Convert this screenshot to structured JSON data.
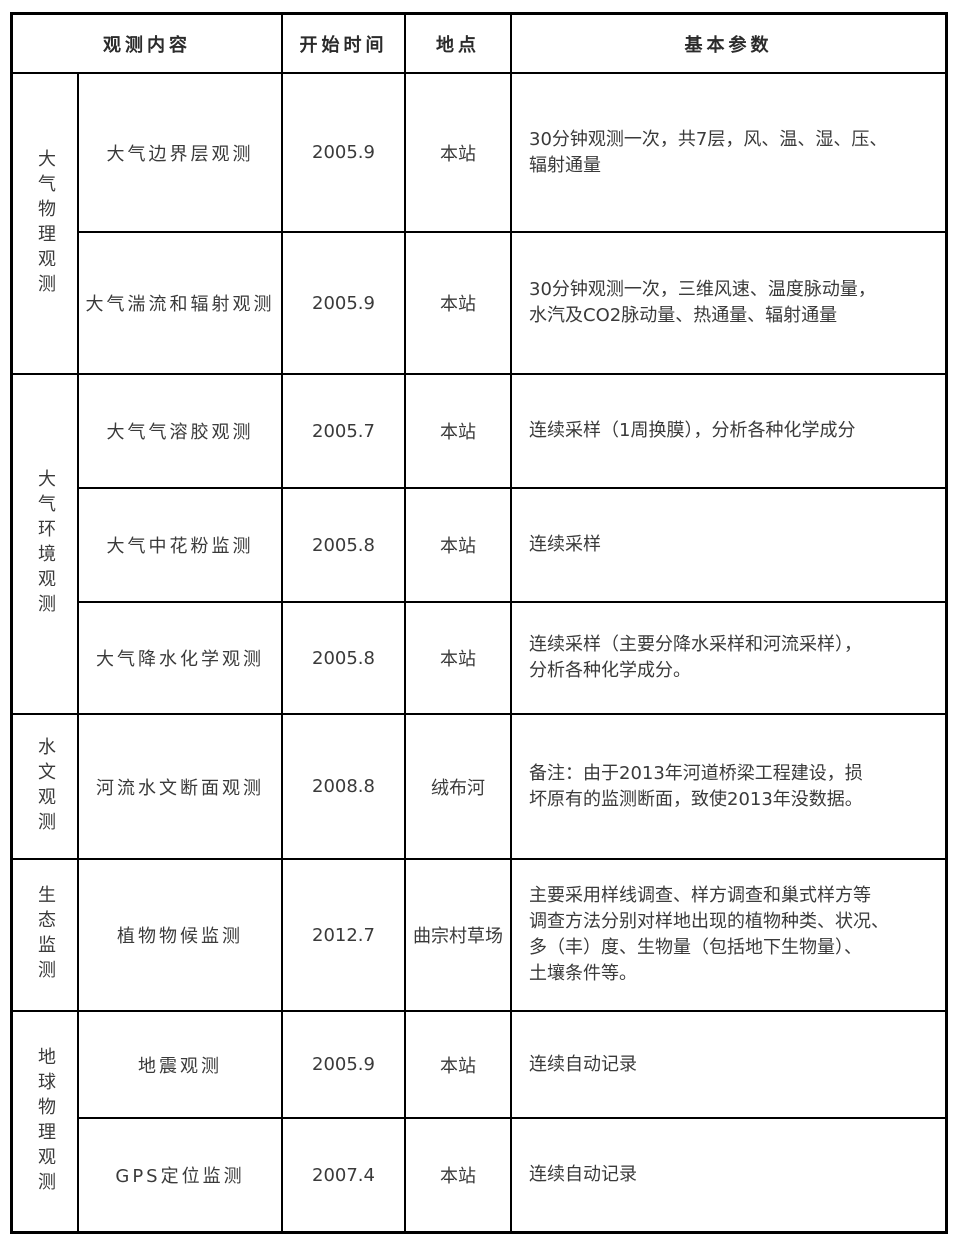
{
  "colors": {
    "border": "#000000",
    "header_text": "#2b2b2b",
    "body_text": "#3a3a3a",
    "background": "#ffffff"
  },
  "table": {
    "headers": {
      "observation_content": "观测内容",
      "start_time": "开始时间",
      "location": "地点",
      "basic_params": "基本参数"
    },
    "sections": [
      {
        "category": "大气物理观测",
        "rows": [
          {
            "item": "大气边界层观测",
            "start": "2005.9",
            "location": "本站",
            "params": "30分钟观测一次，共7层，风、温、湿、压、\n辐射通量"
          },
          {
            "item": "大气湍流和辐射观测",
            "start": "2005.9",
            "location": "本站",
            "params": "30分钟观测一次，三维风速、温度脉动量，\n水汽及CO2脉动量、热通量、辐射通量"
          }
        ]
      },
      {
        "category": "大气环境观测",
        "rows": [
          {
            "item": "大气气溶胶观测",
            "start": "2005.7",
            "location": "本站",
            "params": "连续采样（1周换膜），分析各种化学成分"
          },
          {
            "item": "大气中花粉监测",
            "start": "2005.8",
            "location": "本站",
            "params": "连续采样"
          },
          {
            "item": "大气降水化学观测",
            "start": "2005.8",
            "location": "本站",
            "params": "连续采样（主要分降水采样和河流采样），\n分析各种化学成分。"
          }
        ]
      },
      {
        "category": "水文观测",
        "rows": [
          {
            "item": "河流水文断面观测",
            "start": "2008.8",
            "location": "绒布河",
            "params": "备注：由于2013年河道桥梁工程建设，损\n坏原有的监测断面，致使2013年没数据。"
          }
        ]
      },
      {
        "category": "生态监测",
        "rows": [
          {
            "item": "植物物候监测",
            "start": "2012.7",
            "location": "曲宗村草场",
            "params": "主要采用样线调查、样方调查和巢式样方等\n调查方法分别对样地出现的植物种类、状况、\n多（丰）度、生物量（包括地下生物量）、\n土壤条件等。"
          }
        ]
      },
      {
        "category": "地球物理观测",
        "rows": [
          {
            "item": "地震观测",
            "start": "2005.9",
            "location": "本站",
            "params": "连续自动记录"
          },
          {
            "item": "GPS定位监测",
            "start": "2007.4",
            "location": "本站",
            "params": "连续自动记录"
          }
        ]
      }
    ]
  }
}
